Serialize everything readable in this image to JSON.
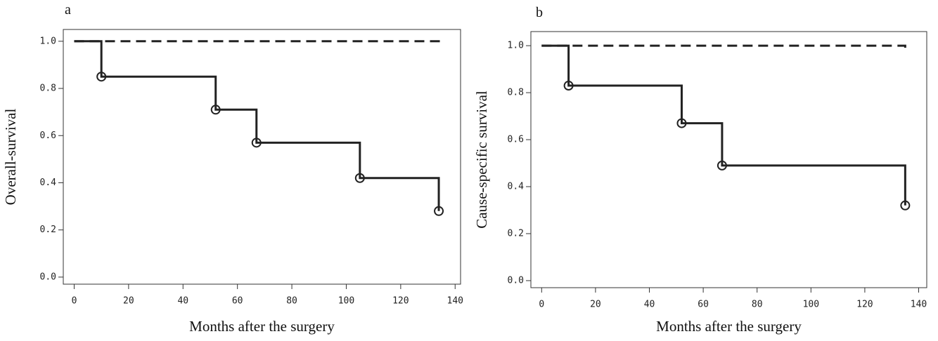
{
  "chart_data": [
    {
      "type": "step",
      "panel_label": "a",
      "xlabel": "Months after the surgery",
      "ylabel": "Overall-survival",
      "xlim": [
        -4,
        142
      ],
      "ylim": [
        -0.03,
        1.05
      ],
      "xticks": [
        0,
        20,
        40,
        60,
        80,
        100,
        120,
        140
      ],
      "yticks": [
        {
          "value": 0,
          "label": "0.0"
        },
        0.2,
        0.4,
        0.6,
        0.8,
        {
          "value": 1,
          "label": "1.0"
        }
      ],
      "series": [
        {
          "color": "#222222",
          "dashed": false,
          "marker": "circle",
          "x": [
            0,
            10,
            52,
            67,
            105,
            134
          ],
          "values": [
            1,
            0.85,
            0.71,
            0.57,
            0.42,
            0.28
          ]
        },
        {
          "color": "#222222",
          "dashed": true,
          "x": [
            0,
            134
          ],
          "values": [
            1,
            0.99
          ]
        }
      ]
    },
    {
      "type": "step",
      "panel_label": "b",
      "xlabel": "Months after the surgery",
      "ylabel": "Cause-specific survival",
      "xlim": [
        -4,
        143
      ],
      "ylim": [
        -0.03,
        1.06
      ],
      "xticks": [
        0,
        20,
        40,
        60,
        80,
        100,
        120,
        140
      ],
      "yticks": [
        {
          "value": 0,
          "label": "0.0"
        },
        0.2,
        0.4,
        0.6,
        0.8,
        {
          "value": 1,
          "label": "1.0"
        }
      ],
      "series": [
        {
          "color": "#222222",
          "dashed": false,
          "marker": "circle",
          "x": [
            0,
            10,
            52,
            67,
            135
          ],
          "values": [
            1,
            0.83,
            0.67,
            0.49,
            0.32
          ]
        },
        {
          "color": "#222222",
          "dashed": true,
          "x": [
            0,
            135
          ],
          "values": [
            1,
            0.99
          ]
        }
      ]
    }
  ]
}
